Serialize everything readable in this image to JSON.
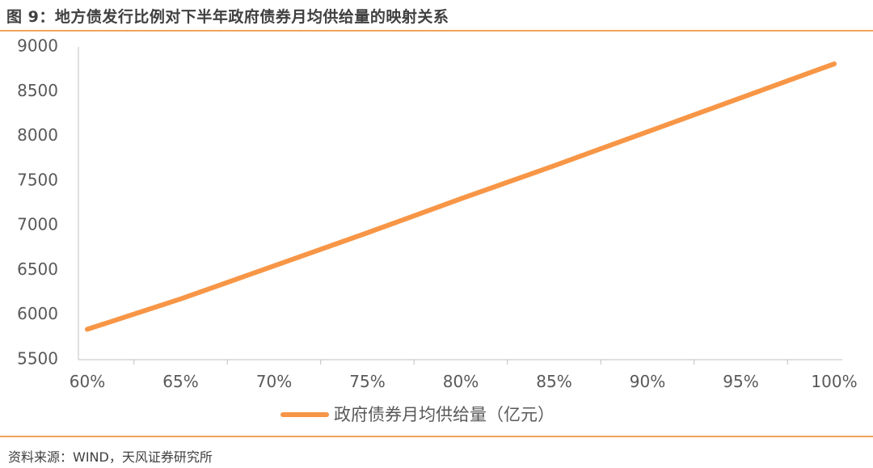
{
  "header": {
    "title": "图 9：地方债发行比例对下半年政府债券月均供给量的映射关系"
  },
  "footer": {
    "source": "资料来源：WIND，天风证券研究所"
  },
  "colors": {
    "accent": "#f0a35a",
    "series": "#f79646",
    "axis": "#bfbfbf",
    "text": "#595959"
  },
  "chart_data": {
    "type": "line",
    "x": [
      "60%",
      "65%",
      "70%",
      "75%",
      "80%",
      "85%",
      "90%",
      "95%",
      "100%"
    ],
    "series": [
      {
        "name": "政府债券月均供给量（亿元）",
        "values": [
          5840,
          6180,
          6550,
          6920,
          7300,
          7670,
          8050,
          8430,
          8810
        ]
      }
    ],
    "yticks": [
      "9000",
      "8500",
      "8000",
      "7500",
      "7000",
      "6500",
      "6000",
      "5500"
    ],
    "ylim": [
      5500,
      9000
    ],
    "grid": false,
    "legend": "bottom"
  }
}
